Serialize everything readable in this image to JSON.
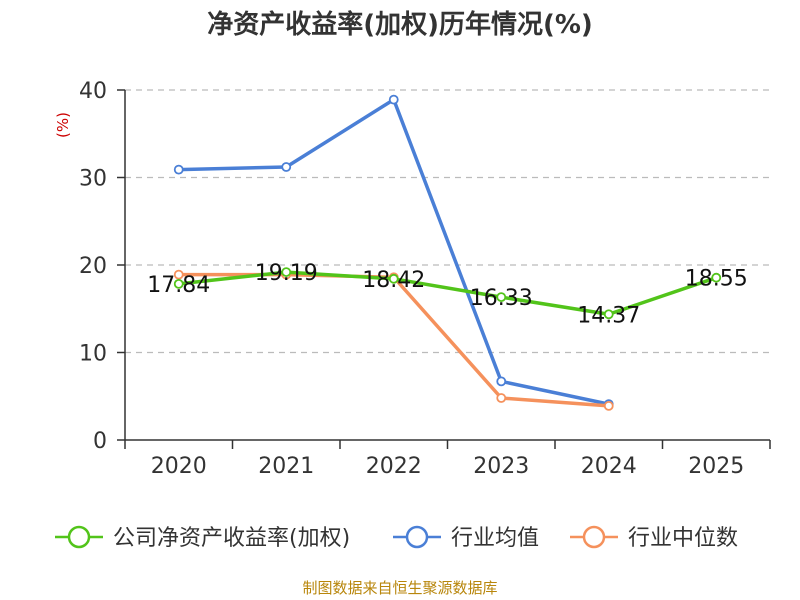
{
  "chart_data": {
    "type": "line",
    "title": "净资产收益率(加权)历年情况(%)",
    "ylabel": "(%)",
    "xlabel": "",
    "categories": [
      "2020",
      "2021",
      "2022",
      "2023",
      "2024",
      "2025"
    ],
    "ylim": [
      0,
      40
    ],
    "yticks": [
      0,
      10,
      20,
      30,
      40
    ],
    "grid": true,
    "legend_position": "bottom",
    "series": [
      {
        "name": "公司净资产收益率(加权)",
        "color": "#52c41a",
        "values": [
          17.84,
          19.19,
          18.42,
          16.33,
          14.37,
          18.55
        ],
        "labels": [
          "17.84",
          "19.19",
          "18.42",
          "16.33",
          "14.37",
          "18.55"
        ]
      },
      {
        "name": "行业均值",
        "color": "#4a7fd6",
        "values": [
          30.9,
          31.2,
          38.9,
          6.7,
          4.1,
          null
        ]
      },
      {
        "name": "行业中位数",
        "color": "#f5915c",
        "values": [
          18.9,
          18.9,
          18.6,
          4.8,
          3.9,
          null
        ]
      }
    ],
    "source": "制图数据来自恒生聚源数据库"
  }
}
